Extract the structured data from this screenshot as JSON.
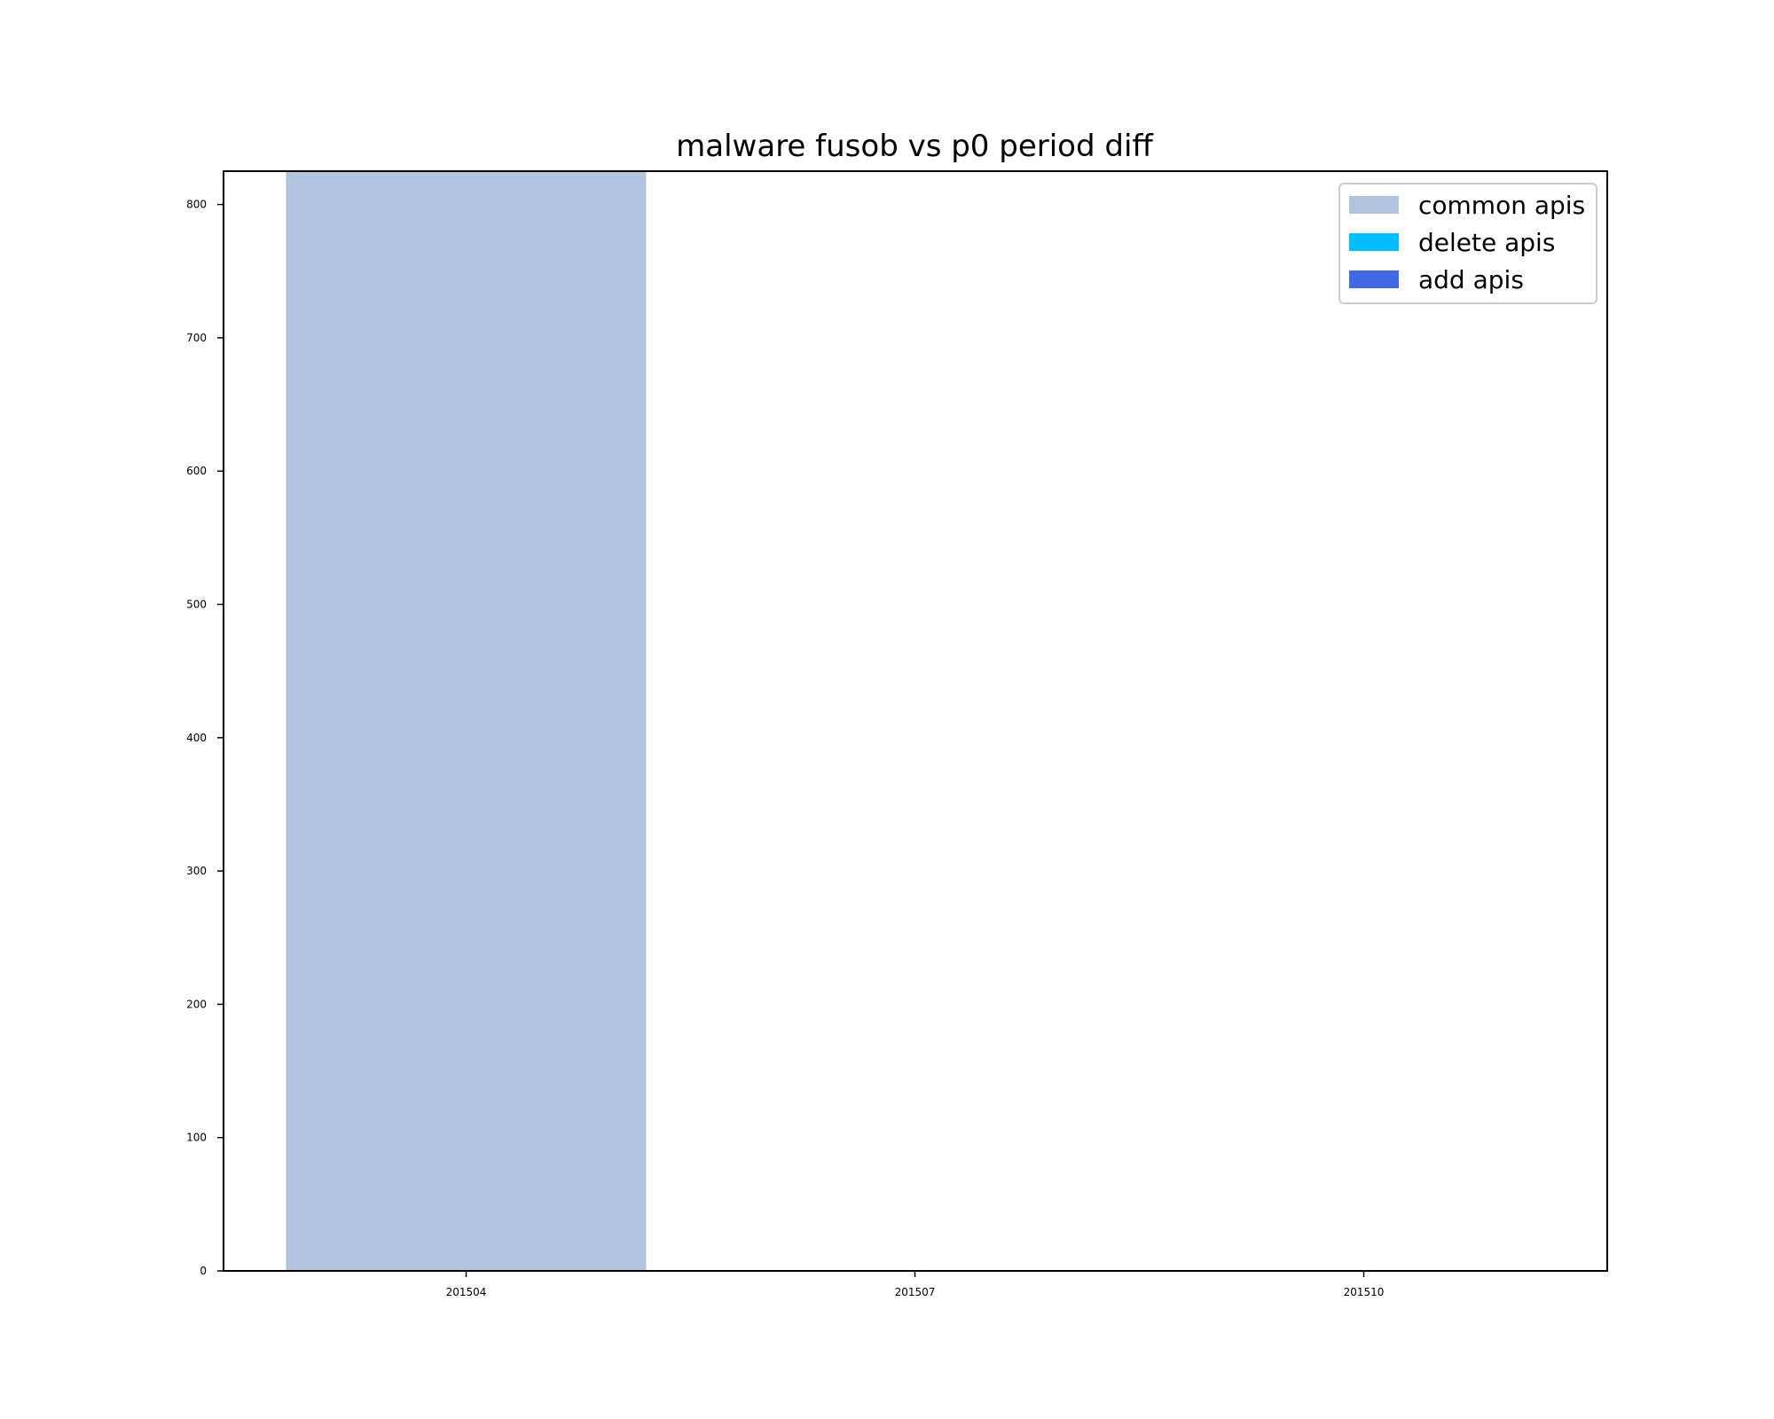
{
  "chart_data": {
    "type": "bar",
    "stacked": true,
    "title": "malware fusob vs p0 period diff",
    "xlabel": "",
    "ylabel": "",
    "categories": [
      "201504",
      "201507",
      "201510"
    ],
    "ylim": [
      0,
      825
    ],
    "yticks": [
      0,
      100,
      200,
      300,
      400,
      500,
      600,
      700,
      800
    ],
    "grid": false,
    "legend_position": "top-right",
    "series": [
      {
        "name": "common apis",
        "color": "#b0c4de",
        "values": [
          825,
          0,
          0
        ]
      },
      {
        "name": "delete apis",
        "color": "#00bfff",
        "values": [
          0,
          0,
          0
        ]
      },
      {
        "name": "add apis",
        "color": "#4169e1",
        "values": [
          0,
          0,
          0
        ]
      }
    ]
  }
}
